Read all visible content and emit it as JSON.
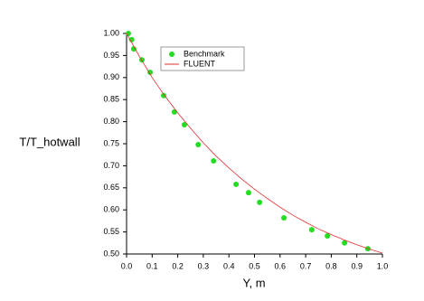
{
  "chart_data": {
    "type": "scatter",
    "x_label": "Y, m",
    "y_label": "T/T_hotwall",
    "xlim": [
      0,
      1
    ],
    "ylim": [
      0.5,
      1
    ],
    "xticks": [
      {
        "value": 0,
        "label": "0.0"
      },
      0.1,
      0.2,
      0.3,
      0.4,
      0.5,
      0.6,
      0.7,
      0.8,
      0.9,
      {
        "value": 1,
        "label": "1.0"
      }
    ],
    "yticks": [
      {
        "value": 0.5,
        "label": "0.50"
      },
      0.55,
      {
        "value": 0.6,
        "label": "0.60"
      },
      0.65,
      {
        "value": 0.7,
        "label": "0.70"
      },
      0.75,
      {
        "value": 0.8,
        "label": "0.80"
      },
      0.85,
      {
        "value": 0.9,
        "label": "0.90"
      },
      0.95,
      {
        "value": 1,
        "label": "1.00"
      }
    ],
    "legend": "upper-left",
    "series": [
      {
        "name": "Benchmark",
        "color": "#22dd22",
        "style": "marker",
        "x": [
          0.007,
          0.02,
          0.028,
          0.06,
          0.092,
          0.145,
          0.187,
          0.226,
          0.28,
          0.34,
          0.428,
          0.477,
          0.52,
          0.615,
          0.724,
          0.785,
          0.852,
          0.943
        ],
        "values": [
          1.0,
          0.986,
          0.965,
          0.94,
          0.912,
          0.859,
          0.822,
          0.793,
          0.748,
          0.711,
          0.658,
          0.639,
          0.617,
          0.582,
          0.555,
          0.541,
          0.525,
          0.512
        ]
      },
      {
        "name": "FLUENT",
        "color": "#e03030",
        "style": "line",
        "x": [
          0,
          0.05,
          0.1,
          0.15,
          0.2,
          0.25,
          0.3,
          0.35,
          0.4,
          0.45,
          0.5,
          0.55,
          0.6,
          0.65,
          0.7,
          0.75,
          0.8,
          0.85,
          0.9,
          0.95,
          1.0
        ],
        "values": [
          1.0,
          0.948,
          0.9,
          0.858,
          0.82,
          0.785,
          0.752,
          0.722,
          0.695,
          0.67,
          0.647,
          0.626,
          0.606,
          0.588,
          0.572,
          0.557,
          0.544,
          0.532,
          0.521,
          0.511,
          0.502
        ]
      }
    ]
  }
}
